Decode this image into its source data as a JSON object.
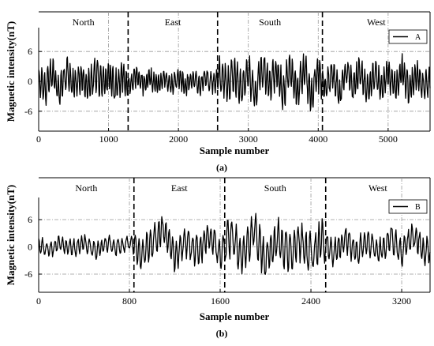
{
  "chart_data": [
    {
      "type": "line",
      "panel_label": "(a)",
      "xlabel": "Sample number",
      "ylabel": "Magnetic intensity(nT)",
      "xlim": [
        0,
        5600
      ],
      "ylim": [
        -10,
        10
      ],
      "xticks": [
        "0",
        "1000",
        "2000",
        "3000",
        "4000",
        "5000"
      ],
      "xtick_values": [
        0,
        1000,
        2000,
        3000,
        4000,
        5000
      ],
      "yticks": [
        "6",
        "0",
        "-6"
      ],
      "ytick_values": [
        6,
        0,
        -6
      ],
      "grid": true,
      "legend": "top-right",
      "series": [
        {
          "name": "A",
          "color": "#000000",
          "segment_bounds": [
            0,
            1280,
            2560,
            4060,
            5600
          ],
          "segment_amplitude": [
            3.5,
            2.2,
            4.0,
            3.3
          ],
          "x": [
            0,
            100,
            200,
            300,
            400,
            500,
            600,
            700,
            800,
            900,
            1000,
            1100,
            1200,
            1300,
            1400,
            1500,
            1600,
            1700,
            1800,
            1900,
            2000,
            2100,
            2200,
            2300,
            2400,
            2500,
            2600,
            2700,
            2800,
            2900,
            3000,
            3100,
            3200,
            3300,
            3400,
            3500,
            3600,
            3700,
            3800,
            3900,
            4000,
            4100,
            4200,
            4300,
            4400,
            4500,
            4600,
            4700,
            4800,
            4900,
            5000,
            5100,
            5200,
            5300,
            5400,
            5500,
            5600
          ],
          "y": [
            0.5,
            -3.0,
            4.2,
            -5.0,
            3.6,
            -2.0,
            1.5,
            -2.5,
            3.0,
            -1.0,
            2.0,
            -2.4,
            2.0,
            -2.0,
            2.5,
            -1.8,
            1.5,
            -2.4,
            2.0,
            -1.6,
            2.2,
            -2.0,
            1.4,
            -2.5,
            2.2,
            -1.2,
            3.0,
            -2.5,
            3.5,
            -4.0,
            4.5,
            -6.5,
            6.5,
            -3.0,
            4.0,
            -5.0,
            7.0,
            -5.5,
            6.0,
            -7.0,
            4.0,
            -3.5,
            4.5,
            -6.0,
            5.0,
            -2.0,
            4.5,
            -4.5,
            3.5,
            -3.0,
            4.0,
            -3.0,
            5.0,
            -4.0,
            3.0,
            -2.5,
            0.0
          ]
        }
      ],
      "regions": [
        {
          "label": "North",
          "start": 0,
          "end": 1280
        },
        {
          "label": "East",
          "start": 1280,
          "end": 2560
        },
        {
          "label": "South",
          "start": 2560,
          "end": 4060
        },
        {
          "label": "West",
          "start": 4060,
          "end": 5600
        }
      ],
      "region_dividers": [
        1280,
        2560,
        4060
      ],
      "vertical_gridlines": [
        1000,
        2000,
        3000,
        4000,
        5000
      ]
    },
    {
      "type": "line",
      "panel_label": "(b)",
      "xlabel": "Sample number",
      "ylabel": "Magnetic intensity(nT)",
      "xlim": [
        0,
        3450
      ],
      "ylim": [
        -10,
        10
      ],
      "xticks": [
        "0",
        "800",
        "1600",
        "2400",
        "3200"
      ],
      "xtick_values": [
        0,
        800,
        1600,
        2400,
        3200
      ],
      "yticks": [
        "6",
        "0",
        "-6"
      ],
      "ytick_values": [
        6,
        0,
        -6
      ],
      "grid": true,
      "legend": "top-right",
      "series": [
        {
          "name": "B",
          "color": "#000000",
          "segment_bounds": [
            0,
            840,
            1640,
            2530,
            3450
          ],
          "segment_amplitude": [
            2.0,
            3.8,
            4.8,
            3.2
          ],
          "x": [
            0,
            100,
            200,
            300,
            400,
            500,
            600,
            700,
            800,
            900,
            1000,
            1100,
            1200,
            1300,
            1400,
            1500,
            1600,
            1700,
            1800,
            1900,
            2000,
            2100,
            2200,
            2300,
            2400,
            2500,
            2600,
            2700,
            2800,
            2900,
            3000,
            3100,
            3200,
            3300,
            3400
          ],
          "y": [
            0.5,
            -1.5,
            2.0,
            -1.0,
            1.5,
            -2.0,
            1.8,
            -1.0,
            2.5,
            -3.5,
            2.5,
            8.0,
            -4.5,
            3.0,
            -3.5,
            4.5,
            -3.0,
            5.5,
            -6.0,
            8.5,
            -7.5,
            4.0,
            -3.5,
            3.0,
            -4.0,
            4.0,
            -3.0,
            3.5,
            -2.5,
            3.0,
            -3.0,
            4.5,
            -3.0,
            5.5,
            -2.0
          ]
        }
      ],
      "regions": [
        {
          "label": "North",
          "start": 0,
          "end": 840
        },
        {
          "label": "East",
          "start": 840,
          "end": 1640
        },
        {
          "label": "South",
          "start": 1640,
          "end": 2530
        },
        {
          "label": "West",
          "start": 2530,
          "end": 3450
        }
      ],
      "region_dividers": [
        840,
        1640,
        2530
      ],
      "vertical_gridlines": [
        800,
        1600,
        2400,
        3200
      ]
    }
  ]
}
